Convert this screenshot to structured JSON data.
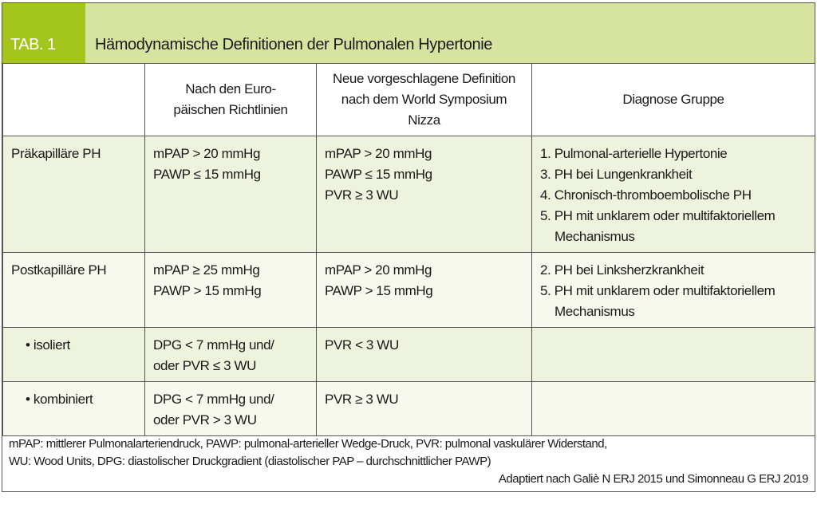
{
  "header": {
    "tab_label": "TAB. 1",
    "title": "Hämodynamische Definitionen der Pulmonalen Hypertonie"
  },
  "columns": [
    "",
    "Nach den Euro-\npäischen Richtlinien",
    "Neue vorgeschlagene Definition nach dem World Symposium Nizza",
    "Diagnose Gruppe"
  ],
  "rows": [
    {
      "label": "Präkapilläre PH",
      "eu": [
        "mPAP > 20 mmHg",
        "PAWP ≤ 15 mmHg"
      ],
      "new": [
        "mPAP > 20 mmHg",
        "PAWP ≤ 15 mmHg",
        "PVR ≥ 3 WU"
      ],
      "groups": [
        "1. Pulmonal-arterielle Hypertonie",
        "3. PH bei Lungenkrankheit",
        "4. Chronisch-thromboembolische PH",
        "5. PH mit unklarem oder multifak­toriellem Mechanismus"
      ]
    },
    {
      "label": "Postkapilläre PH",
      "eu": [
        "mPAP ≥ 25 mmHg",
        "PAWP > 15 mmHg"
      ],
      "new": [
        "mPAP > 20 mmHg",
        "PAWP > 15 mmHg"
      ],
      "groups": [
        "2. PH bei Linksherzkrankheit",
        "5. PH mit unklarem oder multifaktoriellem Mechanismus"
      ]
    },
    {
      "label": "• isoliert",
      "eu": [
        "DPG < 7 mmHg und/",
        "oder PVR ≤ 3 WU"
      ],
      "new": [
        "PVR < 3 WU"
      ],
      "groups": []
    },
    {
      "label": "• kombiniert",
      "eu": [
        "DPG < 7 mmHg und/",
        "oder PVR > 3 WU"
      ],
      "new": [
        "PVR ≥ 3 WU"
      ],
      "groups": []
    }
  ],
  "footnote": {
    "lines": [
      "mPAP: mittlerer Pulmonalarteriendruck,  PAWP: pulmonal-arterieller Wedge-Druck,  PVR: pulmonal vaskulärer Widerstand,",
      "WU: Wood Units,  DPG: diastolischer Druckgradient (diastolischer PAP – durchschnittlicher PAWP)"
    ],
    "source": "Adaptiert nach Galiè N ERJ 2015 und Simonneau G ERJ 2019"
  },
  "colors": {
    "tab": "#a3c51c",
    "header_band": "#d6e4a0",
    "row_green": "#edf3dc",
    "row_pale": "#f7f9ee"
  }
}
